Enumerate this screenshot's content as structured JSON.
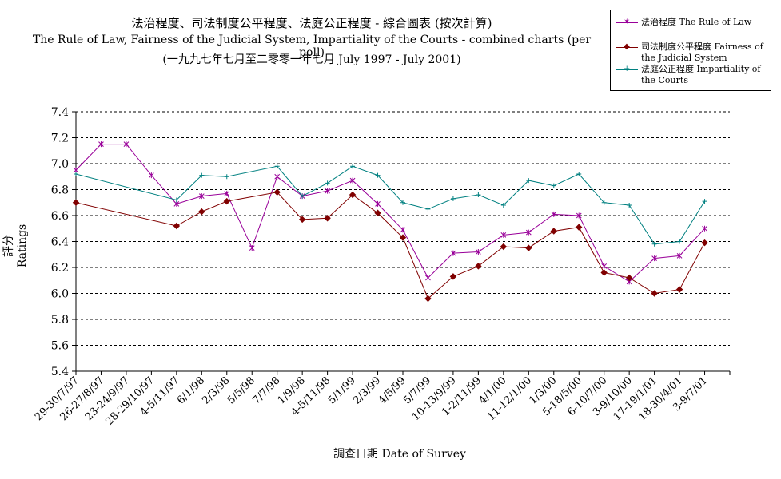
{
  "titles": {
    "line1": "法治程度、司法制度公平程度、法庭公正程度 - 綜合圖表 (按次計算)",
    "line2": "The Rule of Law, Fairness of the Judicial System, Impartiality of the Courts - combined charts (per poll)",
    "line3": "(一九九七年七月至二零零一年七月 July 1997 - July 2001)"
  },
  "chart_data": {
    "type": "line",
    "xlabel": "調查日期 Date of Survey",
    "ylabel": "評分 Ratings",
    "ylim": [
      5.4,
      7.4
    ],
    "yticks": [
      "7.4",
      "7.2",
      "7.0",
      "6.8",
      "6.6",
      "6.4",
      "6.2",
      "6.0",
      "5.8",
      "5.6",
      "5.4"
    ],
    "grid": true,
    "legend_position": "top-right",
    "categories": [
      "29-30/7/97",
      "26-27/8/97",
      "23-24/9/97",
      "28-29/10/97",
      "4-5/11/97",
      "6/1/98",
      "2/3/98",
      "5/5/98",
      "7/7/98",
      "1/9/98",
      "4-5/11/98",
      "5/1/99",
      "2/3/99",
      "4/5/99",
      "5/7/99",
      "10-13/9/99",
      "1-2/11/99",
      "4/1/00",
      "11-12/1/00",
      "1/3/00",
      "5-18/5/00",
      "6-10/7/00",
      "3-9/10/00",
      "17-19/1/01",
      "18-30/4/01",
      "3-9/7/01"
    ],
    "series": [
      {
        "name": "法治程度 The Rule of Law",
        "color": "#990099",
        "marker": "star",
        "values": [
          6.95,
          7.15,
          7.15,
          6.91,
          6.69,
          6.75,
          6.77,
          6.35,
          6.9,
          6.75,
          6.79,
          6.87,
          6.69,
          6.49,
          6.12,
          6.31,
          6.32,
          6.45,
          6.47,
          6.61,
          6.6,
          6.21,
          6.09,
          6.27,
          6.29,
          6.5
        ]
      },
      {
        "name": "司法制度公平程度 Fairness of the Judicial System",
        "color": "#800000",
        "marker": "diamond",
        "values": [
          6.7,
          null,
          null,
          null,
          6.52,
          6.63,
          6.71,
          null,
          6.78,
          6.57,
          6.58,
          6.76,
          6.62,
          6.43,
          5.96,
          6.13,
          6.21,
          6.36,
          6.35,
          6.48,
          6.51,
          6.16,
          6.12,
          6.0,
          6.03,
          6.39
        ]
      },
      {
        "name": "法庭公正程度 Impartiality of the Courts",
        "color": "#008080",
        "marker": "plus",
        "values": [
          6.92,
          null,
          null,
          null,
          6.72,
          6.91,
          6.9,
          null,
          6.98,
          6.75,
          6.85,
          6.98,
          6.91,
          6.7,
          6.65,
          6.73,
          6.76,
          6.68,
          6.87,
          6.83,
          6.92,
          6.7,
          6.68,
          6.38,
          6.4,
          6.71
        ]
      }
    ]
  }
}
